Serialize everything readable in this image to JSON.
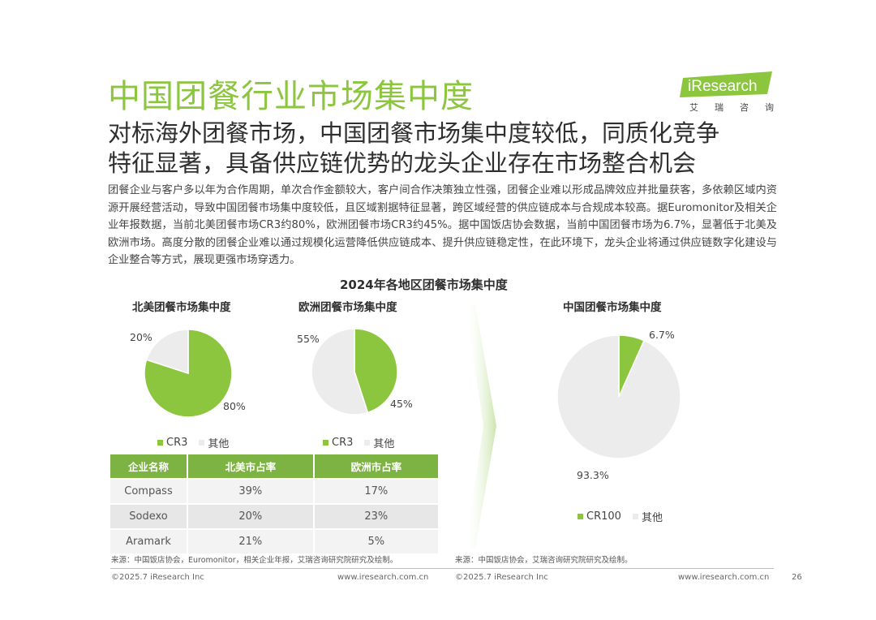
{
  "header": {
    "title": "中国团餐行业市场集中度",
    "logo_text": "iResearch",
    "logo_cn": "艾瑞咨询"
  },
  "subtitle": {
    "line1": "对标海外团餐市场，中国团餐市场集中度较低，同质化竞争",
    "line2": "特征显著，具备供应链优势的龙头企业存在市场整合机会"
  },
  "body_text": "团餐企业与客户多以年为合作周期，单次合作金额较大，客户间合作决策独立性强，团餐企业难以形成品牌效应并批量获客，多依赖区域内资源开展经营活动，导致中国团餐市场集中度较低，且区域割据特征显著，跨区域经营的供应链成本与合规成本较高。据Euromonitor及相关企业年报数据，当前北美团餐市场CR3约80%，欧洲团餐市场CR3约45%。据中国饭店协会数据，当前中国团餐市场为6.7%，显著低于北美及欧洲市场。高度分散的团餐企业难以通过规模化运营降低供应链成本、提升供应链稳定性，在此环境下，龙头企业将通过供应链数字化建设与企业整合等方式，展现更强市场穿透力。",
  "colors": {
    "green": "#8cc63f",
    "light": "#ececec",
    "table_header": "#7cb342"
  },
  "chart_data": {
    "title": "2024年各地区团餐市场集中度",
    "charts": [
      {
        "type": "pie",
        "title": "北美团餐市场集中度",
        "slices": [
          {
            "label": "CR3",
            "value": 80,
            "display": "80%"
          },
          {
            "label": "其他",
            "value": 20,
            "display": "20%"
          }
        ]
      },
      {
        "type": "pie",
        "title": "欧洲团餐市场集中度",
        "slices": [
          {
            "label": "CR3",
            "value": 45,
            "display": "45%"
          },
          {
            "label": "其他",
            "value": 55,
            "display": "55%"
          }
        ]
      },
      {
        "type": "pie",
        "title": "中国团餐市场集中度",
        "slices": [
          {
            "label": "CR100",
            "value": 6.7,
            "display": "6.7%"
          },
          {
            "label": "其他",
            "value": 93.3,
            "display": "93.3%"
          }
        ]
      }
    ],
    "table": {
      "type": "table",
      "headers": [
        "企业名称",
        "北美市占率",
        "欧洲市占率"
      ],
      "rows": [
        [
          "Compass",
          "39%",
          "17%"
        ],
        [
          "Sodexo",
          "20%",
          "23%"
        ],
        [
          "Aramark",
          "21%",
          "5%"
        ]
      ]
    }
  },
  "sources": {
    "left": "来源：中国饭店协会，Euromonitor，相关企业年报，艾瑞咨询研究院研究及绘制。",
    "right": "来源：中国饭店协会，艾瑞咨询研究院研究及绘制。"
  },
  "footer": {
    "copyright_left": "©2025.7 iResearch Inc",
    "url_left": "www.iresearch.com.cn",
    "copyright_right": "©2025.7 iResearch Inc",
    "url_right": "www.iresearch.com.cn",
    "page_number": "26"
  }
}
